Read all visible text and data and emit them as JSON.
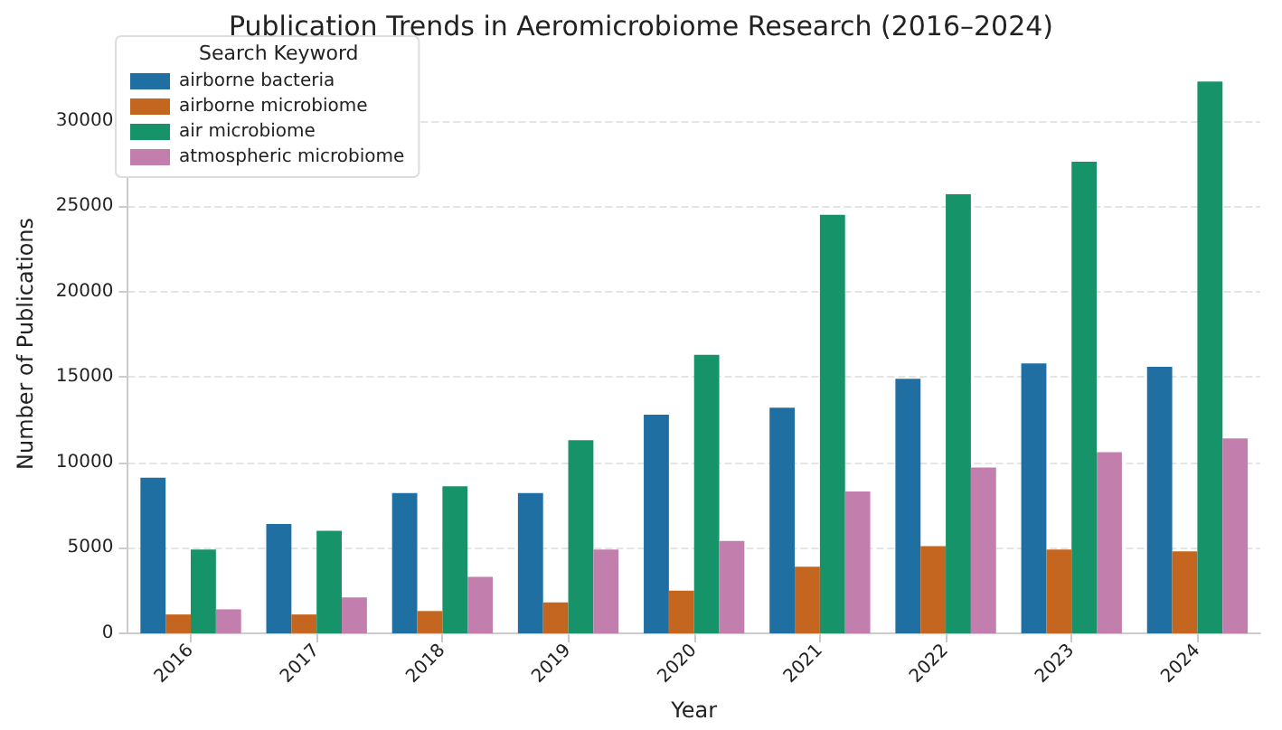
{
  "chart_data": {
    "type": "bar",
    "title": "Publication Trends in Aeromicrobiome Research (2016–2024)",
    "xlabel": "Year",
    "ylabel": "Number of Publications",
    "legend_title": "Search Keyword",
    "categories": [
      "2016",
      "2017",
      "2018",
      "2019",
      "2020",
      "2021",
      "2022",
      "2023",
      "2024"
    ],
    "series": [
      {
        "name": "airborne bacteria",
        "color": "#1f6fa3",
        "values": [
          9100,
          6400,
          8200,
          8200,
          12800,
          13200,
          14900,
          15800,
          15600
        ]
      },
      {
        "name": "airborne microbiome",
        "color": "#c4661f",
        "values": [
          1100,
          1100,
          1300,
          1800,
          2500,
          3900,
          5100,
          4900,
          4800
        ]
      },
      {
        "name": "air microbiome",
        "color": "#17936a",
        "values": [
          4900,
          6000,
          8600,
          11300,
          16300,
          24500,
          25700,
          27600,
          32300
        ]
      },
      {
        "name": "atmospheric microbiome",
        "color": "#c27fae",
        "values": [
          1400,
          2100,
          3300,
          4900,
          5400,
          8300,
          9700,
          10600,
          11400
        ]
      }
    ],
    "ylim": [
      0,
      33900
    ],
    "yticks": [
      0,
      5000,
      10000,
      15000,
      20000,
      25000,
      30000
    ],
    "grid": "y",
    "legend": "top left"
  }
}
